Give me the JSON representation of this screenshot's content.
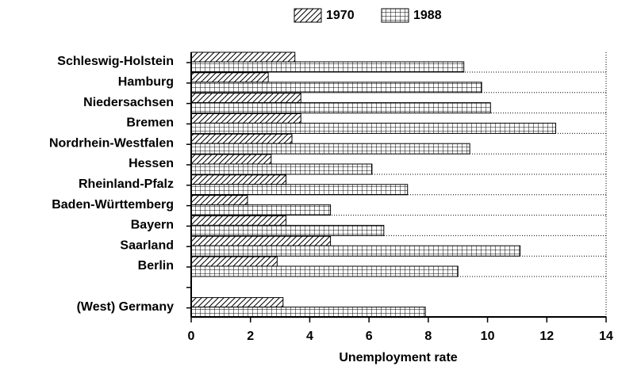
{
  "chart_data": {
    "type": "hbar",
    "x_label": "Unemployment rate",
    "categories": [
      "Schleswig-Holstein",
      "Hamburg",
      "Niedersachsen",
      "Bremen",
      "Nordrhein-Westfalen",
      "Hessen",
      "Rheinland-Pfalz",
      "Baden-Württemberg",
      "Bayern",
      "Saarland",
      "Berlin",
      null,
      "(West) Germany"
    ],
    "series": [
      {
        "name": "1970",
        "color": "#000000",
        "pattern": "hatch",
        "values": [
          3.5,
          2.6,
          3.7,
          3.7,
          3.4,
          2.7,
          3.2,
          1.9,
          3.2,
          4.7,
          2.9,
          null,
          3.1
        ]
      },
      {
        "name": "1988",
        "color": "#000000",
        "pattern": "grid",
        "values": [
          9.2,
          9.8,
          10.1,
          12.3,
          9.4,
          6.1,
          7.3,
          4.7,
          6.5,
          11.1,
          9.0,
          null,
          7.9
        ]
      }
    ],
    "xlim": [
      0,
      14
    ],
    "xticks": [
      0,
      2,
      4,
      6,
      8,
      10,
      12,
      14
    ],
    "grid": true
  }
}
